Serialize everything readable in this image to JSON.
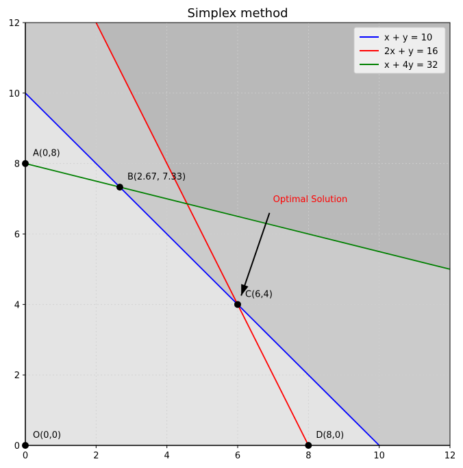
{
  "chart_data": {
    "type": "line",
    "title": "Simplex method",
    "xlabel": "",
    "ylabel": "",
    "xlim": [
      0,
      12
    ],
    "ylim": [
      0,
      12
    ],
    "xticks": [
      0,
      2,
      4,
      6,
      8,
      10,
      12
    ],
    "yticks": [
      0,
      2,
      4,
      6,
      8,
      10,
      12
    ],
    "grid": true,
    "legend_position": "top-right",
    "series": [
      {
        "name": "x + y = 10",
        "color": "#0000ff",
        "x": [
          0,
          10
        ],
        "y": [
          10,
          0
        ]
      },
      {
        "name": "2x + y = 16",
        "color": "#ff0000",
        "x": [
          2,
          8
        ],
        "y": [
          12,
          0
        ]
      },
      {
        "name": "x + 4y = 32",
        "color": "#008000",
        "x": [
          0,
          12
        ],
        "y": [
          8,
          5
        ]
      }
    ],
    "points": [
      {
        "label": "O(0,0)",
        "x": 0,
        "y": 0
      },
      {
        "label": "A(0,8)",
        "x": 0,
        "y": 8
      },
      {
        "label": "B(2.67, 7.33)",
        "x": 2.67,
        "y": 7.33
      },
      {
        "label": "C(6,4)",
        "x": 6,
        "y": 4
      },
      {
        "label": "D(8,0)",
        "x": 8,
        "y": 0
      }
    ],
    "annotation": {
      "text": "Optimal Solution",
      "color": "#ff0000",
      "text_x": 7,
      "text_y": 7,
      "arrow_to_x": 6,
      "arrow_to_y": 4
    },
    "region_colors": {
      "feasible": "#e4e4e4",
      "one_violated": "#cbcbcb",
      "two_violated": "#b9b9b9"
    }
  }
}
